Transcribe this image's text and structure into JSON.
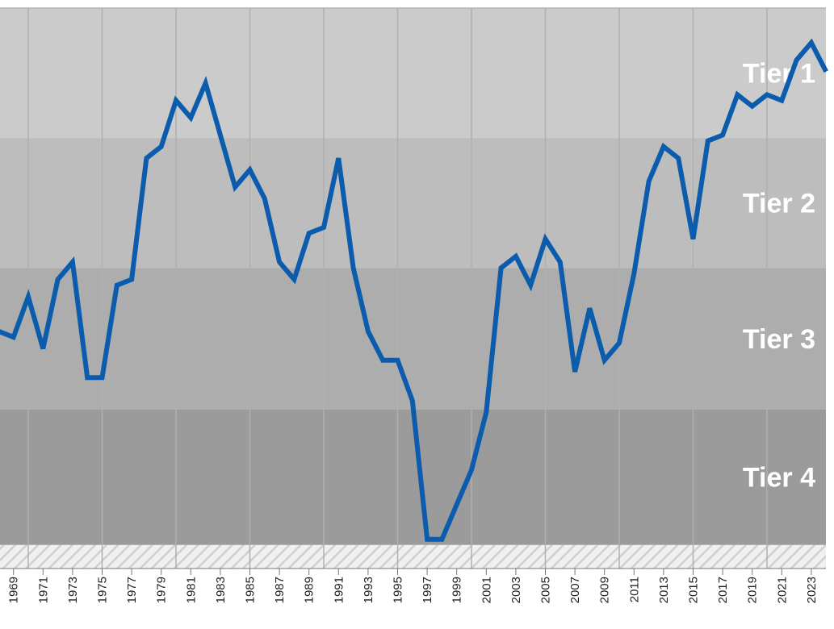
{
  "chart_data": {
    "type": "line",
    "x": [
      1968,
      1969,
      1970,
      1971,
      1972,
      1973,
      1974,
      1975,
      1976,
      1977,
      1978,
      1979,
      1980,
      1981,
      1982,
      1983,
      1984,
      1985,
      1986,
      1987,
      1988,
      1989,
      1990,
      1991,
      1992,
      1993,
      1994,
      1995,
      1996,
      1997,
      1998,
      1999,
      2000,
      2001,
      2002,
      2003,
      2004,
      2005,
      2006,
      2007,
      2008,
      2009,
      2010,
      2011,
      2012,
      2013,
      2014,
      2015,
      2016,
      2017,
      2018,
      2019,
      2020,
      2021,
      2022,
      2023,
      2024
    ],
    "values": [
      56,
      57,
      50,
      59,
      47,
      44,
      64,
      64,
      48,
      47,
      26,
      24,
      16,
      19,
      13,
      22,
      31,
      28,
      33,
      44,
      47,
      39,
      38,
      26,
      45,
      56,
      61,
      61,
      68,
      92,
      92,
      86,
      80,
      70,
      45,
      43,
      48,
      40,
      44,
      63,
      52,
      61,
      58,
      46,
      30,
      24,
      26,
      40,
      23,
      22,
      15,
      17,
      15,
      16,
      9,
      6,
      11
    ],
    "color": "#0b5cad",
    "xlim": [
      1968,
      2024
    ],
    "xticks": [
      1969,
      1971,
      1973,
      1975,
      1977,
      1979,
      1981,
      1983,
      1985,
      1987,
      1989,
      1991,
      1993,
      1995,
      1997,
      1999,
      2001,
      2003,
      2005,
      2007,
      2009,
      2011,
      2013,
      2015,
      2017,
      2019,
      2021,
      2023
    ],
    "grid_x": [
      1970,
      1975,
      1980,
      1985,
      1990,
      1995,
      2000,
      2005,
      2010,
      2015,
      2020
    ],
    "ylim": [
      94,
      0
    ],
    "tiers": [
      {
        "name": "Tier 1",
        "range": [
          0,
          22.5
        ],
        "color": "#cbcbcb"
      },
      {
        "name": "Tier 2",
        "range": [
          22.5,
          45
        ],
        "color": "#bdbdbd"
      },
      {
        "name": "Tier 3",
        "range": [
          45,
          69.5
        ],
        "color": "#adadad"
      },
      {
        "name": "Tier 4",
        "range": [
          69.5,
          93
        ],
        "color": "#9b9b9b"
      }
    ]
  }
}
